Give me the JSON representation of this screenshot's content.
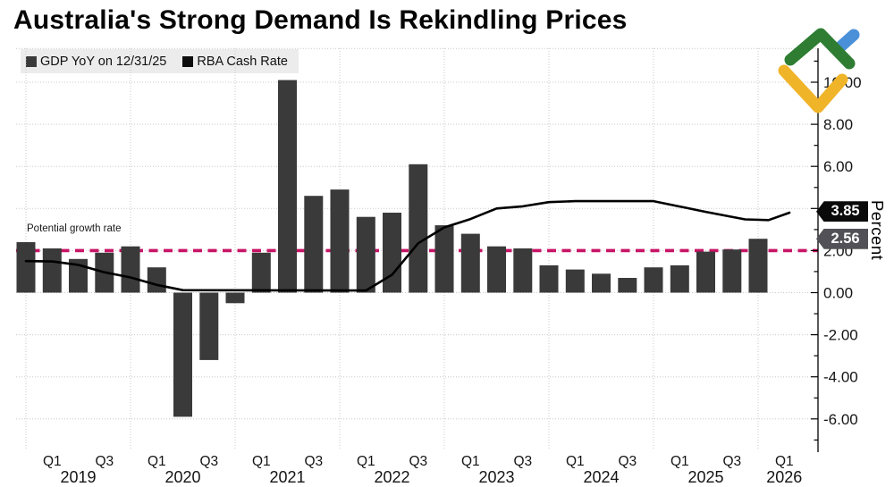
{
  "title": "Australia's Strong Demand Is Rekindling Prices",
  "legend": [
    {
      "label": "GDP YoY on 12/31/25",
      "color": "#3a3a3a"
    },
    {
      "label": "RBA Cash Rate",
      "color": "#0d0d0d"
    }
  ],
  "annotation": "Potential growth rate",
  "axis": {
    "y_title": "Percent",
    "y_tick_labels": [
      "10.00",
      "8.00",
      "6.00",
      "4.00",
      "2.00",
      "0.00",
      "-2.00",
      "-4.00",
      "-6.00"
    ],
    "y_tick_values": [
      10,
      8,
      6,
      4,
      2,
      0,
      -2,
      -4,
      -6
    ]
  },
  "tags": [
    {
      "value": "3.85",
      "series": "RBA Cash Rate",
      "numeric": 3.85,
      "bg": "#0a0a0a"
    },
    {
      "value": "2.56",
      "series": "GDP YoY on 12/31/25",
      "numeric": 2.56,
      "bg": "#515157"
    }
  ],
  "x_axis": {
    "quarter_ticks": [
      {
        "label": "Q1",
        "q": 1
      },
      {
        "label": "Q3",
        "q": 3
      },
      {
        "label": "Q1",
        "q": 5
      },
      {
        "label": "Q3",
        "q": 7
      },
      {
        "label": "Q1",
        "q": 9
      },
      {
        "label": "Q3",
        "q": 11
      },
      {
        "label": "Q1",
        "q": 13
      },
      {
        "label": "Q3",
        "q": 15
      },
      {
        "label": "Q1",
        "q": 17
      },
      {
        "label": "Q3",
        "q": 19
      },
      {
        "label": "Q1",
        "q": 21
      },
      {
        "label": "Q3",
        "q": 23
      },
      {
        "label": "Q1",
        "q": 25
      },
      {
        "label": "Q3",
        "q": 27
      },
      {
        "label": "Q1",
        "q": 29
      }
    ],
    "year_labels": [
      {
        "label": "2019",
        "q": 2
      },
      {
        "label": "2020",
        "q": 6
      },
      {
        "label": "2021",
        "q": 10
      },
      {
        "label": "2022",
        "q": 14
      },
      {
        "label": "2023",
        "q": 18
      },
      {
        "label": "2024",
        "q": 22
      },
      {
        "label": "2025",
        "q": 26
      },
      {
        "label": "2026",
        "q": 29
      }
    ]
  },
  "colors": {
    "background": "#ffffff",
    "bar": "#3a3a3a",
    "line": "#000000",
    "dashed": "#c81466",
    "grid": "#c9c9c9",
    "legend_bg": "#ececec",
    "axis": "#000000",
    "text": "#141414"
  },
  "chart_data": {
    "type": "bar+line",
    "title": "Australia's Strong Demand Is Rekindling Prices",
    "ylabel": "Percent",
    "ylim": [
      -7.6,
      11.6
    ],
    "grid": "dotted",
    "categories": [
      "2018 Q4",
      "2019 Q1",
      "2019 Q2",
      "2019 Q3",
      "2019 Q4",
      "2020 Q1",
      "2020 Q2",
      "2020 Q3",
      "2020 Q4",
      "2021 Q1",
      "2021 Q2",
      "2021 Q3",
      "2021 Q4",
      "2022 Q1",
      "2022 Q2",
      "2022 Q3",
      "2022 Q4",
      "2023 Q1",
      "2023 Q2",
      "2023 Q3",
      "2023 Q4",
      "2024 Q1",
      "2024 Q2",
      "2024 Q3",
      "2024 Q4",
      "2025 Q1",
      "2025 Q2",
      "2025 Q3",
      "2025 Q4"
    ],
    "bar_series": {
      "name": "GDP YoY on 12/31/25",
      "color": "#3a3a3a",
      "values": [
        2.4,
        2.1,
        1.6,
        1.9,
        2.2,
        1.2,
        -5.9,
        -3.2,
        -0.5,
        1.9,
        10.1,
        4.6,
        4.9,
        3.6,
        3.8,
        6.1,
        3.2,
        2.8,
        2.2,
        2.1,
        1.3,
        1.1,
        0.9,
        0.7,
        1.2,
        1.3,
        1.95,
        2.05,
        2.56
      ]
    },
    "line_series": {
      "name": "RBA Cash Rate",
      "color": "#000000",
      "points": [
        [
          0,
          1.5
        ],
        [
          1,
          1.48
        ],
        [
          2,
          1.32
        ],
        [
          3,
          0.97
        ],
        [
          4,
          0.72
        ],
        [
          5,
          0.37
        ],
        [
          6,
          0.12
        ],
        [
          13,
          0.1
        ],
        [
          14,
          0.85
        ],
        [
          15,
          2.35
        ],
        [
          16,
          3.1
        ],
        [
          17,
          3.5
        ],
        [
          18,
          4.0
        ],
        [
          19,
          4.1
        ],
        [
          20,
          4.3
        ],
        [
          21,
          4.35
        ],
        [
          24,
          4.35
        ],
        [
          26,
          3.84
        ],
        [
          27.5,
          3.48
        ],
        [
          28.4,
          3.45
        ],
        [
          29.2,
          3.8
        ]
      ]
    },
    "reference_line": {
      "label": "Potential growth rate",
      "value": 2.0,
      "style": "dashed",
      "color": "#c81466"
    },
    "end_value_tags": [
      {
        "series": "RBA Cash Rate",
        "value": 3.85
      },
      {
        "series": "GDP YoY on 12/31/25",
        "value": 2.56
      }
    ],
    "legend_position": "top-left"
  }
}
